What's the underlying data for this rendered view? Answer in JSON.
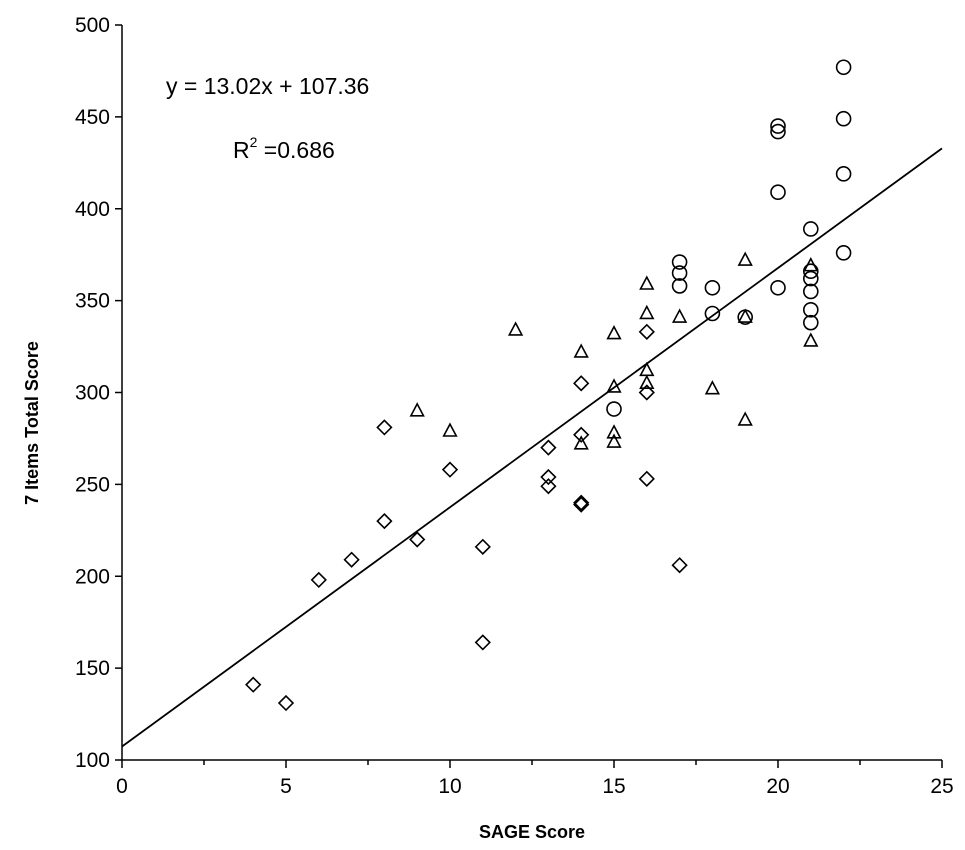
{
  "chart_data": {
    "type": "scatter",
    "title": "",
    "xlabel": "SAGE Score",
    "ylabel": "7 Items Total Score",
    "xlim": [
      0,
      25
    ],
    "ylim": [
      100,
      500
    ],
    "xticks": [
      "0",
      "5",
      "10",
      "15",
      "20",
      "25"
    ],
    "yticks": [
      "100",
      "150",
      "200",
      "250",
      "300",
      "350",
      "400",
      "450",
      "500"
    ],
    "grid": false,
    "legend": "none",
    "annotations": {
      "equation": "y = 13.02x + 107.36",
      "r2_prefix": "R",
      "r2_sup": "2",
      "r2_value": " =0.686"
    },
    "trendline": {
      "slope": 13.02,
      "intercept": 107.36
    },
    "series": [
      {
        "marker": "diamond",
        "points": [
          [
            4,
            141
          ],
          [
            5,
            131
          ],
          [
            6,
            198
          ],
          [
            7,
            209
          ],
          [
            8,
            230
          ],
          [
            8,
            281
          ],
          [
            9,
            220
          ],
          [
            10,
            258
          ],
          [
            11,
            216
          ],
          [
            11,
            164
          ],
          [
            13,
            270
          ],
          [
            13,
            254
          ],
          [
            13,
            249
          ],
          [
            14,
            305
          ],
          [
            14,
            277
          ],
          [
            14,
            240
          ],
          [
            14,
            239
          ],
          [
            16,
            333
          ],
          [
            16,
            300
          ],
          [
            16,
            253
          ],
          [
            17,
            206
          ]
        ]
      },
      {
        "marker": "triangle",
        "points": [
          [
            9,
            290
          ],
          [
            10,
            279
          ],
          [
            12,
            334
          ],
          [
            14,
            322
          ],
          [
            14,
            272
          ],
          [
            15,
            332
          ],
          [
            15,
            303
          ],
          [
            15,
            278
          ],
          [
            15,
            273
          ],
          [
            16,
            359
          ],
          [
            16,
            343
          ],
          [
            16,
            312
          ],
          [
            16,
            305
          ],
          [
            17,
            341
          ],
          [
            18,
            302
          ],
          [
            19,
            372
          ],
          [
            19,
            341
          ],
          [
            19,
            285
          ],
          [
            21,
            369
          ],
          [
            21,
            328
          ]
        ]
      },
      {
        "marker": "circle",
        "points": [
          [
            15,
            291
          ],
          [
            17,
            371
          ],
          [
            17,
            365
          ],
          [
            17,
            358
          ],
          [
            18,
            357
          ],
          [
            18,
            343
          ],
          [
            19,
            341
          ],
          [
            20,
            445
          ],
          [
            20,
            442
          ],
          [
            20,
            409
          ],
          [
            20,
            357
          ],
          [
            21,
            389
          ],
          [
            21,
            366
          ],
          [
            21,
            362
          ],
          [
            21,
            355
          ],
          [
            21,
            345
          ],
          [
            21,
            338
          ],
          [
            22,
            477
          ],
          [
            22,
            449
          ],
          [
            22,
            419
          ],
          [
            22,
            376
          ]
        ]
      }
    ]
  }
}
